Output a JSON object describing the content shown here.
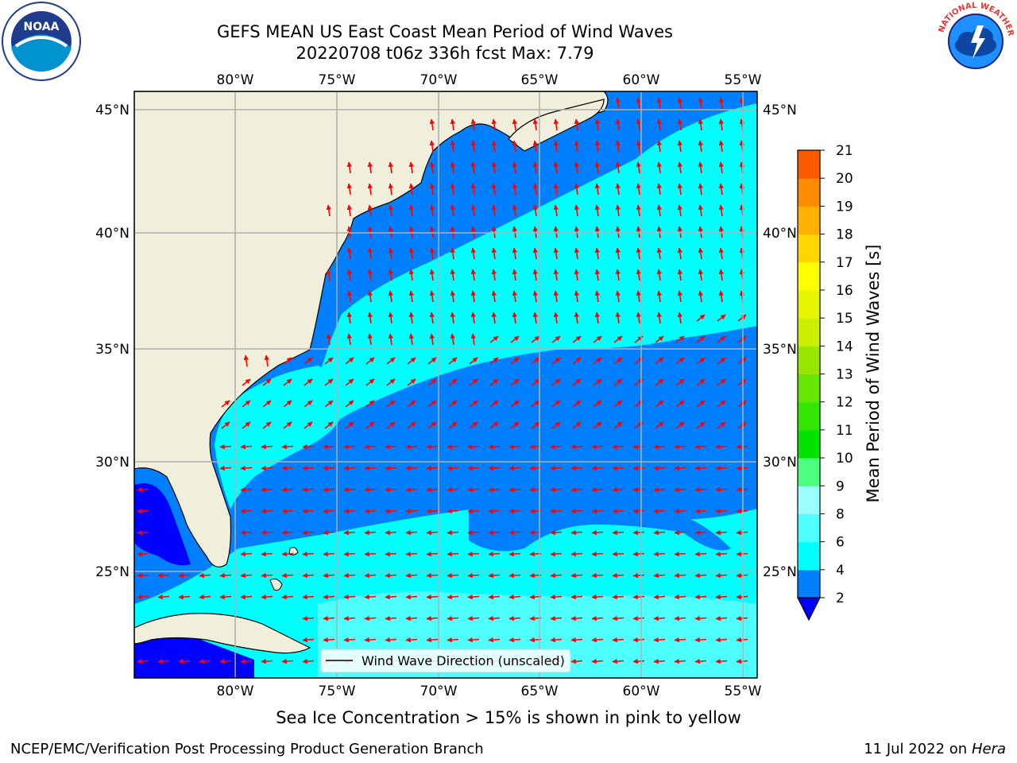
{
  "title": {
    "line1": "GEFS MEAN US East Coast Mean Period of Wind Waves",
    "line2": "20220708 t06z 336h fcst   Max: 7.79"
  },
  "note": "Sea Ice Concentration > 15% is shown in pink to yellow",
  "footer": {
    "left": "NCEP/EMC/Verification Post Processing Product Generation Branch",
    "date": "11 Jul 2022 on ",
    "machine": "Hera"
  },
  "logos": {
    "noaa_text": "NOAA",
    "nws_text": "NATIONAL WEATHER SERVICE",
    "noaa_ring_text": "NATIONAL OCEANIC AND ATMOSPHERIC ADMINISTRATION · U.S. DEPARTMENT OF COMMERCE"
  },
  "map": {
    "lon_labels": [
      "80°W",
      "75°W",
      "70°W",
      "65°W",
      "60°W",
      "55°W"
    ],
    "lat_labels": [
      "45°N",
      "40°N",
      "35°N",
      "30°N",
      "25°N"
    ],
    "legend_label": "Wind Wave Direction (unscaled)",
    "colors": {
      "land": "#efefdc",
      "blue2": "#0000ff",
      "blue4": "#0080ff",
      "cyan6": "#00ffff",
      "cyan8": "#4dffff",
      "arrow": "#ff0000",
      "grid": "#b0b0b0"
    }
  },
  "colorbar": {
    "label": "Mean Period of Wind Waves [s]",
    "ticks": [
      "2",
      "4",
      "6",
      "8",
      "9",
      "10",
      "11",
      "12",
      "13",
      "14",
      "15",
      "16",
      "17",
      "18",
      "19",
      "20",
      "21"
    ],
    "colors": [
      "#0080ff",
      "#00ffff",
      "#4dffff",
      "#99ffff",
      "#4dff80",
      "#00e400",
      "#33e600",
      "#66e600",
      "#99e600",
      "#ccee00",
      "#e6f500",
      "#ffff00",
      "#ffd700",
      "#ffb000",
      "#ff8c00",
      "#ff5a00",
      "#ff2a00",
      "#ff0000"
    ],
    "extend_color": "#0000ff"
  }
}
